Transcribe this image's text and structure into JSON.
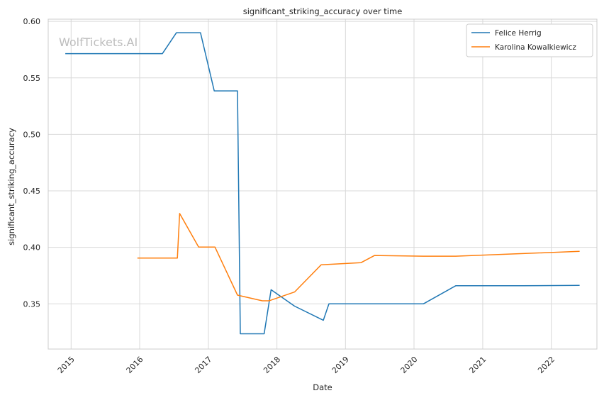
{
  "chart_data": {
    "type": "line",
    "title": "significant_striking_accuracy over time",
    "xlabel": "Date",
    "ylabel": "significant_striking_accuracy",
    "watermark": "WolfTickets.AI",
    "xlim": [
      "2014-09-01",
      "2022-09-01"
    ],
    "ylim": [
      0.31,
      0.602
    ],
    "x_ticks": [
      "2015",
      "2016",
      "2017",
      "2018",
      "2019",
      "2020",
      "2021",
      "2022"
    ],
    "y_ticks": [
      "0.35",
      "0.40",
      "0.45",
      "0.50",
      "0.55",
      "0.60"
    ],
    "grid": true,
    "legend_position": "top-right",
    "series": [
      {
        "name": "Felice Herrig",
        "color": "#1f77b4",
        "points": [
          [
            "2014-12-01",
            0.5715
          ],
          [
            "2016-05-01",
            0.5715
          ],
          [
            "2016-07-15",
            0.59
          ],
          [
            "2016-11-20",
            0.59
          ],
          [
            "2017-02-01",
            0.5385
          ],
          [
            "2017-06-05",
            0.5385
          ],
          [
            "2017-06-20",
            0.3235
          ],
          [
            "2017-10-25",
            0.3235
          ],
          [
            "2017-12-01",
            0.3625
          ],
          [
            "2018-04-05",
            0.348
          ],
          [
            "2018-09-05",
            0.3355
          ],
          [
            "2018-10-05",
            0.35
          ],
          [
            "2020-02-20",
            0.35
          ],
          [
            "2020-08-10",
            0.366
          ],
          [
            "2021-08-01",
            0.366
          ],
          [
            "2022-06-01",
            0.3663
          ]
        ]
      },
      {
        "name": "Karolina Kowalkiewicz",
        "color": "#ff7f0e",
        "points": [
          [
            "2015-12-20",
            0.3905
          ],
          [
            "2016-07-20",
            0.3905
          ],
          [
            "2016-08-01",
            0.43
          ],
          [
            "2016-11-10",
            0.4003
          ],
          [
            "2017-02-05",
            0.4003
          ],
          [
            "2017-06-05",
            0.3577
          ],
          [
            "2017-10-15",
            0.3527
          ],
          [
            "2017-11-20",
            0.3527
          ],
          [
            "2018-04-05",
            0.3605
          ],
          [
            "2018-08-25",
            0.3846
          ],
          [
            "2019-03-25",
            0.3865
          ],
          [
            "2019-06-05",
            0.3928
          ],
          [
            "2020-02-20",
            0.3922
          ],
          [
            "2020-08-10",
            0.3922
          ],
          [
            "2022-06-01",
            0.3965
          ]
        ]
      }
    ]
  }
}
